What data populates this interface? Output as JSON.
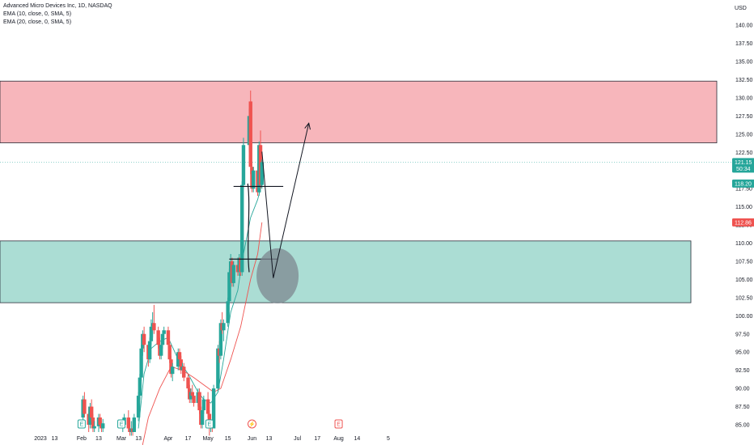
{
  "header": {
    "symbol_line": "Advanced Micro Devices Inc, 1D, NASDAQ",
    "indicators": [
      "EMA (10, close, 0, SMA, 5)",
      "EMA (20, close, 0, SMA, 5)"
    ]
  },
  "colors": {
    "up": "#26a69a",
    "down": "#ef5350",
    "ema10": "#26a69a",
    "ema20": "#ef5350",
    "supply_zone": "#f7b6bb",
    "demand_zone": "#abddd4",
    "ellipse": "#7d8790",
    "price_badge": "#26a69a",
    "badge_blue": "#2962ff",
    "badge_red": "#ef5350"
  },
  "chart_data": {
    "type": "candlestick",
    "currency": "USD",
    "ylim": [
      84,
      143
    ],
    "y_ticks": [
      "140.00",
      "137.50",
      "135.00",
      "132.50",
      "130.00",
      "127.50",
      "125.00",
      "122.50",
      "120.00",
      "117.50",
      "115.00",
      "112.50",
      "110.00",
      "107.50",
      "105.00",
      "102.50",
      "100.00",
      "97.50",
      "95.00",
      "92.50",
      "90.00",
      "87.50",
      "85.00"
    ],
    "x_ticks": [
      {
        "label": "2023",
        "date": "2023-01-03"
      },
      {
        "label": "13",
        "date": "2023-01-13"
      },
      {
        "label": "Feb",
        "date": "2023-02-01"
      },
      {
        "label": "13",
        "date": "2023-02-13"
      },
      {
        "label": "Mar",
        "date": "2023-03-01"
      },
      {
        "label": "13",
        "date": "2023-03-13"
      },
      {
        "label": "Apr",
        "date": "2023-04-03"
      },
      {
        "label": "17",
        "date": "2023-04-17"
      },
      {
        "label": "May",
        "date": "2023-05-01"
      },
      {
        "label": "15",
        "date": "2023-05-15"
      },
      {
        "label": "Jun",
        "date": "2023-06-01"
      },
      {
        "label": "13",
        "date": "2023-06-13"
      },
      {
        "label": "Jul",
        "date": "2023-07-03"
      },
      {
        "label": "17",
        "date": "2023-07-17"
      },
      {
        "label": "Aug",
        "date": "2023-08-01"
      },
      {
        "label": "14",
        "date": "2023-08-14"
      },
      {
        "label": "5",
        "date": "2023-09-05"
      }
    ],
    "candles": [
      {
        "date": "2023-02-02",
        "o": 86.0,
        "h": 89.0,
        "l": 84.5,
        "c": 88.5
      },
      {
        "date": "2023-02-03",
        "o": 88.5,
        "h": 89.5,
        "l": 86.0,
        "c": 86.5
      },
      {
        "date": "2023-02-06",
        "o": 86.5,
        "h": 87.5,
        "l": 84.0,
        "c": 85.0
      },
      {
        "date": "2023-02-07",
        "o": 85.0,
        "h": 88.0,
        "l": 84.5,
        "c": 87.5
      },
      {
        "date": "2023-02-08",
        "o": 87.5,
        "h": 88.5,
        "l": 85.5,
        "c": 86.0
      },
      {
        "date": "2023-02-09",
        "o": 86.0,
        "h": 86.5,
        "l": 84.0,
        "c": 84.5
      },
      {
        "date": "2023-02-10",
        "o": 84.5,
        "h": 85.5,
        "l": 84.0,
        "c": 84.8
      },
      {
        "date": "2023-02-13",
        "o": 84.8,
        "h": 86.5,
        "l": 84.0,
        "c": 86.0
      },
      {
        "date": "2023-02-14",
        "o": 86.0,
        "h": 86.5,
        "l": 84.5,
        "c": 85.0
      },
      {
        "date": "2023-02-15",
        "o": 85.0,
        "h": 85.5,
        "l": 84.0,
        "c": 84.5
      },
      {
        "date": "2023-02-16",
        "o": 84.5,
        "h": 85.8,
        "l": 84.0,
        "c": 85.2
      },
      {
        "date": "2023-03-02",
        "o": 84.5,
        "h": 85.5,
        "l": 84.0,
        "c": 85.0
      },
      {
        "date": "2023-03-03",
        "o": 85.0,
        "h": 86.5,
        "l": 84.5,
        "c": 86.0
      },
      {
        "date": "2023-03-06",
        "o": 86.0,
        "h": 87.0,
        "l": 84.0,
        "c": 84.5
      },
      {
        "date": "2023-03-07",
        "o": 84.5,
        "h": 85.0,
        "l": 83.5,
        "c": 84.0
      },
      {
        "date": "2023-03-08",
        "o": 84.0,
        "h": 85.5,
        "l": 83.5,
        "c": 84.5
      },
      {
        "date": "2023-03-09",
        "o": 84.5,
        "h": 85.5,
        "l": 83.5,
        "c": 84.0
      },
      {
        "date": "2023-03-10",
        "o": 84.0,
        "h": 86.5,
        "l": 84.0,
        "c": 86.0
      },
      {
        "date": "2023-03-13",
        "o": 86.0,
        "h": 89.5,
        "l": 85.5,
        "c": 89.0
      },
      {
        "date": "2023-03-14",
        "o": 89.0,
        "h": 92.0,
        "l": 88.5,
        "c": 91.5
      },
      {
        "date": "2023-03-15",
        "o": 91.5,
        "h": 96.0,
        "l": 91.0,
        "c": 95.5
      },
      {
        "date": "2023-03-16",
        "o": 95.5,
        "h": 98.0,
        "l": 94.5,
        "c": 97.5
      },
      {
        "date": "2023-03-17",
        "o": 97.5,
        "h": 98.5,
        "l": 95.0,
        "c": 96.0
      },
      {
        "date": "2023-03-20",
        "o": 96.0,
        "h": 96.5,
        "l": 93.0,
        "c": 94.0
      },
      {
        "date": "2023-03-21",
        "o": 94.0,
        "h": 97.0,
        "l": 93.5,
        "c": 96.5
      },
      {
        "date": "2023-03-22",
        "o": 96.5,
        "h": 99.5,
        "l": 96.0,
        "c": 98.5
      },
      {
        "date": "2023-03-23",
        "o": 98.5,
        "h": 100.5,
        "l": 97.0,
        "c": 99.0
      },
      {
        "date": "2023-03-24",
        "o": 99.0,
        "h": 101.5,
        "l": 97.5,
        "c": 98.0
      },
      {
        "date": "2023-03-27",
        "o": 98.0,
        "h": 98.5,
        "l": 95.5,
        "c": 96.0
      },
      {
        "date": "2023-03-28",
        "o": 96.0,
        "h": 97.0,
        "l": 94.0,
        "c": 94.5
      },
      {
        "date": "2023-03-29",
        "o": 94.5,
        "h": 96.5,
        "l": 94.0,
        "c": 96.0
      },
      {
        "date": "2023-03-30",
        "o": 96.0,
        "h": 98.0,
        "l": 95.5,
        "c": 97.5
      },
      {
        "date": "2023-03-31",
        "o": 97.5,
        "h": 98.5,
        "l": 96.0,
        "c": 98.0
      },
      {
        "date": "2023-04-03",
        "o": 98.0,
        "h": 98.5,
        "l": 95.5,
        "c": 96.0
      },
      {
        "date": "2023-04-04",
        "o": 96.0,
        "h": 96.5,
        "l": 93.5,
        "c": 94.0
      },
      {
        "date": "2023-04-05",
        "o": 94.0,
        "h": 94.5,
        "l": 91.5,
        "c": 92.0
      },
      {
        "date": "2023-04-06",
        "o": 92.0,
        "h": 93.5,
        "l": 91.0,
        "c": 93.0
      },
      {
        "date": "2023-04-10",
        "o": 93.0,
        "h": 95.5,
        "l": 92.5,
        "c": 95.0
      },
      {
        "date": "2023-04-11",
        "o": 95.0,
        "h": 95.5,
        "l": 93.5,
        "c": 94.0
      },
      {
        "date": "2023-04-12",
        "o": 94.0,
        "h": 94.5,
        "l": 92.0,
        "c": 92.5
      },
      {
        "date": "2023-04-13",
        "o": 92.5,
        "h": 93.5,
        "l": 91.5,
        "c": 93.0
      },
      {
        "date": "2023-04-14",
        "o": 93.0,
        "h": 93.5,
        "l": 91.0,
        "c": 91.5
      },
      {
        "date": "2023-04-17",
        "o": 91.5,
        "h": 92.0,
        "l": 89.5,
        "c": 90.0
      },
      {
        "date": "2023-04-18",
        "o": 90.0,
        "h": 90.5,
        "l": 88.0,
        "c": 88.5
      },
      {
        "date": "2023-04-19",
        "o": 88.5,
        "h": 90.0,
        "l": 88.0,
        "c": 89.5
      },
      {
        "date": "2023-04-20",
        "o": 89.5,
        "h": 90.5,
        "l": 88.5,
        "c": 89.0
      },
      {
        "date": "2023-04-21",
        "o": 89.0,
        "h": 89.5,
        "l": 87.5,
        "c": 88.0
      },
      {
        "date": "2023-04-24",
        "o": 88.0,
        "h": 90.0,
        "l": 87.5,
        "c": 89.5
      },
      {
        "date": "2023-04-25",
        "o": 89.5,
        "h": 90.0,
        "l": 86.5,
        "c": 87.0
      },
      {
        "date": "2023-04-26",
        "o": 87.0,
        "h": 87.5,
        "l": 84.5,
        "c": 85.0
      },
      {
        "date": "2023-04-27",
        "o": 85.0,
        "h": 87.5,
        "l": 84.5,
        "c": 87.0
      },
      {
        "date": "2023-04-28",
        "o": 87.0,
        "h": 89.0,
        "l": 86.5,
        "c": 88.5
      },
      {
        "date": "2023-05-01",
        "o": 88.5,
        "h": 89.5,
        "l": 86.0,
        "c": 86.5
      },
      {
        "date": "2023-05-02",
        "o": 86.5,
        "h": 87.0,
        "l": 83.5,
        "c": 84.5
      },
      {
        "date": "2023-05-03",
        "o": 84.5,
        "h": 85.5,
        "l": 84.0,
        "c": 85.0
      },
      {
        "date": "2023-05-04",
        "o": 85.0,
        "h": 85.5,
        "l": 84.0,
        "c": 84.5
      },
      {
        "date": "2023-05-05",
        "o": 84.5,
        "h": 90.5,
        "l": 84.5,
        "c": 90.0
      },
      {
        "date": "2023-05-08",
        "o": 90.0,
        "h": 96.0,
        "l": 89.5,
        "c": 95.5
      },
      {
        "date": "2023-05-09",
        "o": 95.5,
        "h": 96.5,
        "l": 93.5,
        "c": 94.5
      },
      {
        "date": "2023-05-10",
        "o": 94.5,
        "h": 99.5,
        "l": 94.0,
        "c": 99.0
      },
      {
        "date": "2023-05-11",
        "o": 99.0,
        "h": 100.5,
        "l": 97.5,
        "c": 98.0
      },
      {
        "date": "2023-05-12",
        "o": 98.0,
        "h": 99.5,
        "l": 96.5,
        "c": 99.0
      },
      {
        "date": "2023-05-15",
        "o": 99.0,
        "h": 102.5,
        "l": 98.5,
        "c": 102.0
      },
      {
        "date": "2023-05-16",
        "o": 102.0,
        "h": 106.5,
        "l": 101.5,
        "c": 106.0
      },
      {
        "date": "2023-05-17",
        "o": 106.0,
        "h": 108.5,
        "l": 105.0,
        "c": 107.5
      },
      {
        "date": "2023-05-18",
        "o": 107.5,
        "h": 108.0,
        "l": 104.0,
        "c": 104.5
      },
      {
        "date": "2023-05-19",
        "o": 104.5,
        "h": 107.5,
        "l": 104.0,
        "c": 107.0
      },
      {
        "date": "2023-05-22",
        "o": 107.0,
        "h": 108.0,
        "l": 105.5,
        "c": 106.0
      },
      {
        "date": "2023-05-23",
        "o": 106.0,
        "h": 108.5,
        "l": 105.5,
        "c": 108.0
      },
      {
        "date": "2023-05-24",
        "o": 108.0,
        "h": 108.5,
        "l": 105.5,
        "c": 106.0
      },
      {
        "date": "2023-05-25",
        "o": 106.0,
        "h": 118.5,
        "l": 105.5,
        "c": 118.0
      },
      {
        "date": "2023-05-26",
        "o": 118.0,
        "h": 124.5,
        "l": 117.5,
        "c": 123.5
      },
      {
        "date": "2023-05-30",
        "o": 123.5,
        "h": 128.5,
        "l": 122.5,
        "c": 127.5
      },
      {
        "date": "2023-05-31",
        "o": 129.5,
        "h": 131.0,
        "l": 119.5,
        "c": 120.5
      },
      {
        "date": "2023-06-01",
        "o": 120.5,
        "h": 121.0,
        "l": 117.0,
        "c": 117.5
      },
      {
        "date": "2023-06-02",
        "o": 117.5,
        "h": 120.5,
        "l": 117.0,
        "c": 120.0
      },
      {
        "date": "2023-06-05",
        "o": 120.0,
        "h": 121.0,
        "l": 116.5,
        "c": 117.0
      },
      {
        "date": "2023-06-06",
        "o": 117.0,
        "h": 124.0,
        "l": 116.5,
        "c": 123.5
      },
      {
        "date": "2023-06-07",
        "o": 123.5,
        "h": 125.5,
        "l": 117.5,
        "c": 118.0
      },
      {
        "date": "2023-06-08",
        "o": 118.0,
        "h": 121.5,
        "l": 117.5,
        "c": 121.15
      }
    ],
    "ema10": [
      {
        "date": "2023-03-13",
        "v": 84.5
      },
      {
        "date": "2023-03-17",
        "v": 92.0
      },
      {
        "date": "2023-03-22",
        "v": 95.5
      },
      {
        "date": "2023-03-28",
        "v": 96.5
      },
      {
        "date": "2023-04-03",
        "v": 97.0
      },
      {
        "date": "2023-04-10",
        "v": 94.0
      },
      {
        "date": "2023-04-17",
        "v": 92.0
      },
      {
        "date": "2023-04-24",
        "v": 89.5
      },
      {
        "date": "2023-04-28",
        "v": 88.5
      },
      {
        "date": "2023-05-03",
        "v": 88.0
      },
      {
        "date": "2023-05-08",
        "v": 89.5
      },
      {
        "date": "2023-05-12",
        "v": 94.0
      },
      {
        "date": "2023-05-17",
        "v": 100.5
      },
      {
        "date": "2023-05-22",
        "v": 103.5
      },
      {
        "date": "2023-05-25",
        "v": 107.5
      },
      {
        "date": "2023-05-31",
        "v": 113.5
      },
      {
        "date": "2023-06-05",
        "v": 116.0
      },
      {
        "date": "2023-06-08",
        "v": 118.2
      }
    ],
    "ema20": [
      {
        "date": "2023-03-13",
        "v": 79.5
      },
      {
        "date": "2023-03-20",
        "v": 86.0
      },
      {
        "date": "2023-03-28",
        "v": 90.0
      },
      {
        "date": "2023-04-05",
        "v": 93.0
      },
      {
        "date": "2023-04-13",
        "v": 92.5
      },
      {
        "date": "2023-04-21",
        "v": 91.5
      },
      {
        "date": "2023-04-28",
        "v": 90.5
      },
      {
        "date": "2023-05-05",
        "v": 89.5
      },
      {
        "date": "2023-05-10",
        "v": 90.0
      },
      {
        "date": "2023-05-17",
        "v": 94.0
      },
      {
        "date": "2023-05-24",
        "v": 98.5
      },
      {
        "date": "2023-05-31",
        "v": 105.0
      },
      {
        "date": "2023-06-05",
        "v": 108.5
      },
      {
        "date": "2023-06-08",
        "v": 112.86
      }
    ],
    "supply_zone": [
      123.8,
      132.3
    ],
    "demand_zone": [
      101.8,
      110.3
    ],
    "price_labels": [
      {
        "value": 121.15,
        "text": "121.15",
        "sub": "50:34",
        "color": "#26a69a"
      },
      {
        "value": 118.2,
        "text": "118.20",
        "color": "#26a69a"
      },
      {
        "value": 112.86,
        "text": "112.86",
        "color": "#ef5350"
      }
    ],
    "event_badges": [
      {
        "date": "2023-02-01",
        "glyph": "E",
        "color": "#26a69a"
      },
      {
        "date": "2023-03-01",
        "glyph": "E",
        "color": "#26a69a"
      },
      {
        "date": "2023-05-02",
        "glyph": "E",
        "color": "#26a69a"
      },
      {
        "date": "2023-06-01",
        "glyph": "⚡",
        "color": "#ef5350"
      },
      {
        "date": "2023-08-01",
        "glyph": "E",
        "color": "#ef5350"
      }
    ],
    "drawings": {
      "hline_upper": {
        "from": "2023-05-19",
        "to": "2023-06-23",
        "value": 117.8
      },
      "hline_lower": {
        "from": "2023-05-16",
        "to": "2023-06-19",
        "value": 107.8
      },
      "path": [
        {
          "date": "2023-06-08",
          "v": 122.6
        },
        {
          "date": "2023-06-16",
          "v": 105.2
        },
        {
          "date": "2023-07-11",
          "v": 126.5
        }
      ],
      "target_ellipse": {
        "date": "2023-06-19",
        "v": 105.5
      }
    }
  }
}
